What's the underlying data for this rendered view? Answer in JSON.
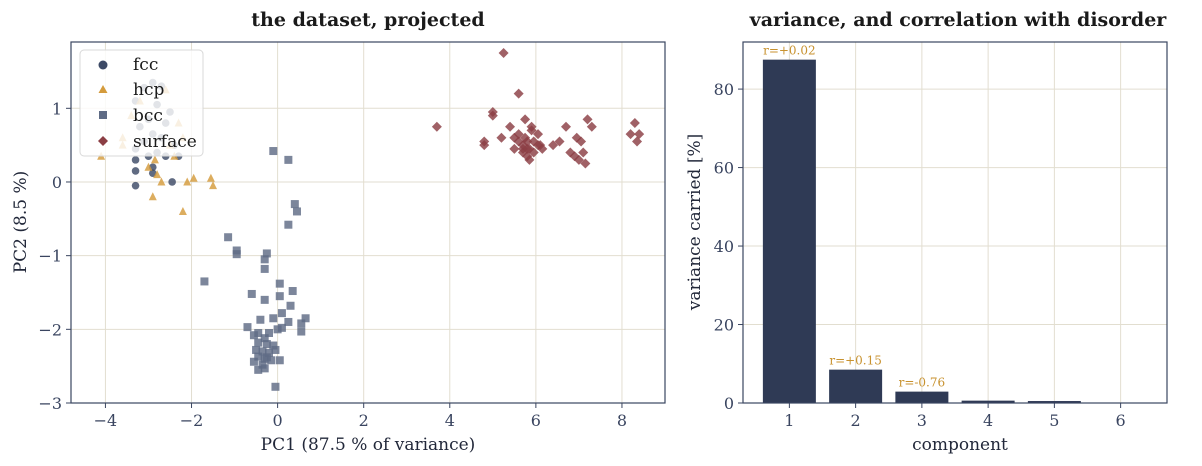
{
  "chart_data": [
    {
      "type": "scatter",
      "title": "the dataset, projected",
      "xlabel": "PC1  (87.5 % of variance)",
      "ylabel": "PC2  (8.5 %)",
      "xlim": [
        -4.8,
        9.0
      ],
      "ylim": [
        -3.0,
        1.9
      ],
      "xticks": [
        -4,
        -2,
        0,
        2,
        4,
        6,
        8
      ],
      "yticks": [
        -3,
        -2,
        -1,
        0,
        1
      ],
      "grid": true,
      "legend_position": "top-left",
      "series": [
        {
          "name": "fcc",
          "marker": "circle",
          "color": "#3d4a66",
          "points": [
            [
              -2.9,
              1.35
            ],
            [
              -3.1,
              1.28
            ],
            [
              -2.7,
              1.3
            ],
            [
              -3.3,
              1.1
            ],
            [
              -2.8,
              1.05
            ],
            [
              -2.5,
              0.95
            ],
            [
              -3.0,
              0.85
            ],
            [
              -2.6,
              0.8
            ],
            [
              -3.2,
              0.75
            ],
            [
              -2.9,
              0.65
            ],
            [
              -2.7,
              0.6
            ],
            [
              -3.1,
              0.55
            ],
            [
              -2.4,
              0.5
            ],
            [
              -3.3,
              0.45
            ],
            [
              -2.8,
              0.4
            ],
            [
              -3.0,
              0.35
            ],
            [
              -2.6,
              0.35
            ],
            [
              -3.3,
              0.3
            ],
            [
              -2.3,
              0.35
            ],
            [
              -2.9,
              0.2
            ],
            [
              -3.3,
              0.15
            ],
            [
              -2.9,
              0.12
            ],
            [
              -2.45,
              0.0
            ],
            [
              -3.3,
              -0.05
            ]
          ]
        },
        {
          "name": "hcp",
          "marker": "triangle",
          "color": "#d49b3c",
          "points": [
            [
              -4.1,
              0.35
            ],
            [
              -3.6,
              0.6
            ],
            [
              -3.4,
              0.9
            ],
            [
              -3.2,
              1.1
            ],
            [
              -2.6,
              1.25
            ],
            [
              -2.3,
              0.8
            ],
            [
              -2.2,
              0.6
            ],
            [
              -2.5,
              0.5
            ],
            [
              -2.4,
              0.35
            ],
            [
              -2.85,
              0.3
            ],
            [
              -3.0,
              0.2
            ],
            [
              -2.8,
              0.1
            ],
            [
              -2.7,
              0.0
            ],
            [
              -2.9,
              -0.2
            ],
            [
              -2.1,
              0.0
            ],
            [
              -1.95,
              0.05
            ],
            [
              -1.55,
              0.05
            ],
            [
              -1.5,
              -0.05
            ],
            [
              -2.2,
              -0.4
            ],
            [
              -3.6,
              0.5
            ]
          ]
        },
        {
          "name": "bcc",
          "marker": "square",
          "color": "#5f6b85",
          "points": [
            [
              -0.1,
              0.42
            ],
            [
              0.25,
              0.3
            ],
            [
              0.4,
              -0.3
            ],
            [
              0.45,
              -0.4
            ],
            [
              0.25,
              -0.58
            ],
            [
              -1.15,
              -0.75
            ],
            [
              -0.95,
              -0.93
            ],
            [
              -0.95,
              -0.98
            ],
            [
              -0.25,
              -0.97
            ],
            [
              -0.3,
              -1.05
            ],
            [
              -0.3,
              -1.18
            ],
            [
              -1.7,
              -1.35
            ],
            [
              0.05,
              -1.38
            ],
            [
              -0.6,
              -1.52
            ],
            [
              0.35,
              -1.48
            ],
            [
              0.05,
              -1.55
            ],
            [
              -0.3,
              -1.6
            ],
            [
              0.3,
              -1.68
            ],
            [
              0.1,
              -1.78
            ],
            [
              0.65,
              -1.85
            ],
            [
              0.55,
              -1.92
            ],
            [
              -0.4,
              -1.87
            ],
            [
              -0.1,
              -1.85
            ],
            [
              0.25,
              -1.9
            ],
            [
              -0.7,
              -1.97
            ],
            [
              0.0,
              -2.0
            ],
            [
              0.1,
              -1.98
            ],
            [
              -0.45,
              -2.05
            ],
            [
              -0.2,
              -2.05
            ],
            [
              -0.55,
              -2.08
            ],
            [
              -0.3,
              -2.12
            ],
            [
              0.55,
              -2.03
            ],
            [
              -0.45,
              -2.18
            ],
            [
              -0.25,
              -2.2
            ],
            [
              -0.1,
              -2.22
            ],
            [
              -0.5,
              -2.28
            ],
            [
              -0.35,
              -2.3
            ],
            [
              -0.2,
              -2.32
            ],
            [
              -0.05,
              -2.28
            ],
            [
              -0.45,
              -2.37
            ],
            [
              -0.3,
              -2.4
            ],
            [
              -0.15,
              -2.42
            ],
            [
              -0.55,
              -2.44
            ],
            [
              -0.35,
              -2.48
            ],
            [
              -0.25,
              -2.38
            ],
            [
              0.05,
              -2.42
            ],
            [
              -0.45,
              -2.55
            ],
            [
              -0.3,
              -2.53
            ],
            [
              -0.05,
              -2.78
            ]
          ]
        },
        {
          "name": "surface",
          "marker": "diamond",
          "color": "#8b3e44",
          "points": [
            [
              3.7,
              0.75
            ],
            [
              4.8,
              0.55
            ],
            [
              4.8,
              0.5
            ],
            [
              5.0,
              0.95
            ],
            [
              5.0,
              0.9
            ],
            [
              5.2,
              0.6
            ],
            [
              5.25,
              1.75
            ],
            [
              5.4,
              0.75
            ],
            [
              5.5,
              0.6
            ],
            [
              5.5,
              0.45
            ],
            [
              5.6,
              0.65
            ],
            [
              5.6,
              0.55
            ],
            [
              5.7,
              0.45
            ],
            [
              5.7,
              0.4
            ],
            [
              5.7,
              0.5
            ],
            [
              5.75,
              0.85
            ],
            [
              5.75,
              0.6
            ],
            [
              5.8,
              0.35
            ],
            [
              5.8,
              0.45
            ],
            [
              5.8,
              0.55
            ],
            [
              5.85,
              0.45
            ],
            [
              5.85,
              0.3
            ],
            [
              5.9,
              0.7
            ],
            [
              5.9,
              0.75
            ],
            [
              5.95,
              0.55
            ],
            [
              5.95,
              0.4
            ],
            [
              6.05,
              0.65
            ],
            [
              6.05,
              0.5
            ],
            [
              6.1,
              0.5
            ],
            [
              6.15,
              0.45
            ],
            [
              5.6,
              1.2
            ],
            [
              6.4,
              0.5
            ],
            [
              6.55,
              0.55
            ],
            [
              6.7,
              0.75
            ],
            [
              6.8,
              0.4
            ],
            [
              6.9,
              0.35
            ],
            [
              6.95,
              0.6
            ],
            [
              7.0,
              0.3
            ],
            [
              7.05,
              0.55
            ],
            [
              7.1,
              0.4
            ],
            [
              7.15,
              0.25
            ],
            [
              7.2,
              0.85
            ],
            [
              7.3,
              0.75
            ],
            [
              8.2,
              0.65
            ],
            [
              8.3,
              0.8
            ],
            [
              8.35,
              0.55
            ],
            [
              8.4,
              0.65
            ]
          ]
        }
      ]
    },
    {
      "type": "bar",
      "title": "variance, and correlation with disorder",
      "xlabel": "component",
      "ylabel": "variance carried  [%]",
      "categories": [
        "1",
        "2",
        "3",
        "4",
        "5",
        "6"
      ],
      "values": [
        87.5,
        8.5,
        2.9,
        0.6,
        0.5,
        0.1
      ],
      "annotations": [
        "r=+0.02",
        "r=+0.15",
        "r=-0.76",
        "",
        "",
        ""
      ],
      "ylim": [
        0,
        92
      ],
      "yticks": [
        0,
        20,
        40,
        60,
        80
      ],
      "grid": true,
      "bar_color": "#2f3a55",
      "label_color": "#c8922f"
    }
  ]
}
